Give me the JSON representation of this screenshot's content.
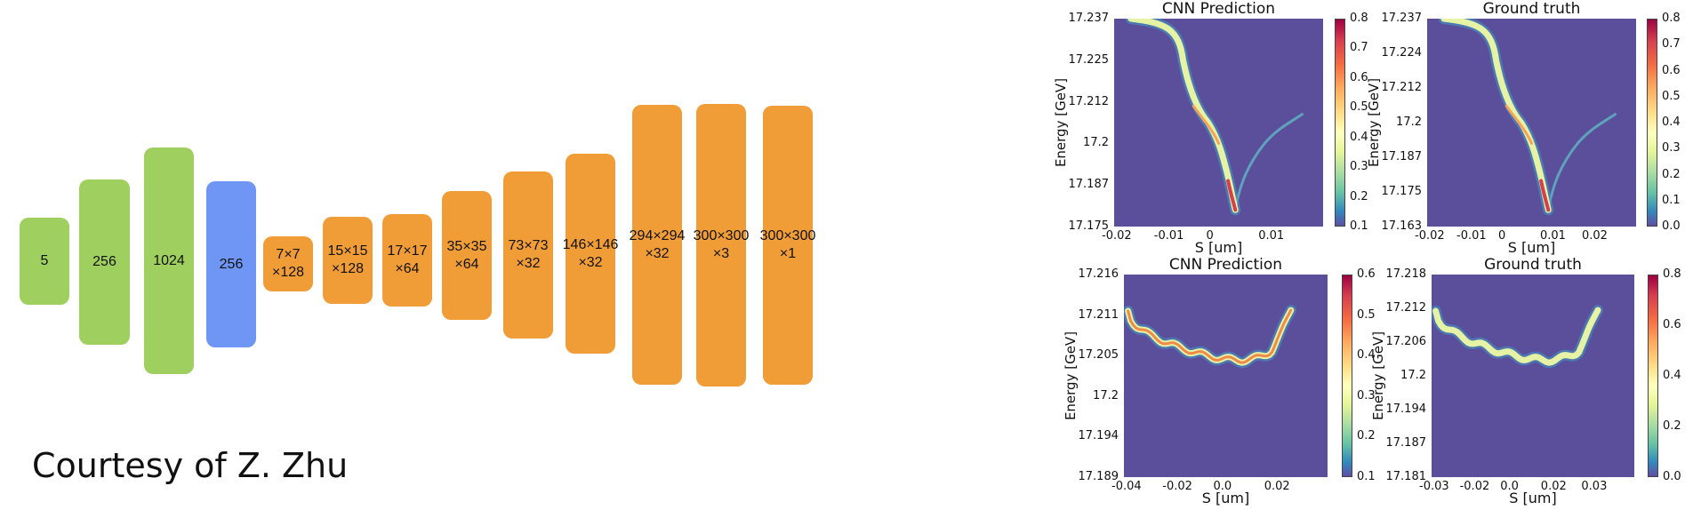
{
  "network": {
    "blocks": [
      {
        "lines": [
          "5"
        ],
        "color": "#9fd05f"
      },
      {
        "lines": [
          "256"
        ],
        "color": "#9fd05f"
      },
      {
        "lines": [
          "1024"
        ],
        "color": "#9fd05f"
      },
      {
        "lines": [
          "256"
        ],
        "color": "#6f96f4"
      },
      {
        "lines": [
          "7×7",
          "×128"
        ],
        "color": "#f09d37"
      },
      {
        "lines": [
          "15×15",
          "×128"
        ],
        "color": "#f09d37"
      },
      {
        "lines": [
          "17×17",
          "×64"
        ],
        "color": "#f09d37"
      },
      {
        "lines": [
          "35×35",
          "×64"
        ],
        "color": "#f09d37"
      },
      {
        "lines": [
          "73×73",
          "×32"
        ],
        "color": "#f09d37"
      },
      {
        "lines": [
          "146×146",
          "×32"
        ],
        "color": "#f09d37"
      },
      {
        "lines": [
          "294×294",
          "×32"
        ],
        "color": "#f09d37"
      },
      {
        "lines": [
          "300×300",
          "×3"
        ],
        "color": "#f09d37"
      },
      {
        "lines": [
          "300×300",
          "×1"
        ],
        "color": "#f09d37"
      }
    ]
  },
  "courtesy": "Courtesy of Z. Zhu",
  "panels": [
    {
      "title": "CNN Prediction",
      "ylabel": "Energy [GeV]",
      "xlabel": "S [um]",
      "yticks": [
        "17.237",
        "17.225",
        "17.212",
        "17.2",
        "17.187",
        "17.175"
      ],
      "xticks": [
        "-0.02",
        "-0.01",
        "0",
        "0.01"
      ],
      "cbticks": [
        "0.8",
        "0.7",
        "0.6",
        "0.5",
        "0.4",
        "0.3",
        "0.2",
        "0.1"
      ],
      "shape": "drop"
    },
    {
      "title": "Ground truth",
      "ylabel": "Energy [GeV]",
      "xlabel": "S [um]",
      "yticks": [
        "17.237",
        "17.224",
        "17.212",
        "17.2",
        "17.187",
        "17.175",
        "17.163"
      ],
      "xticks": [
        "-0.02",
        "-0.01",
        "0",
        "0.01",
        "0.02"
      ],
      "cbticks": [
        "0.8",
        "0.7",
        "0.6",
        "0.5",
        "0.4",
        "0.3",
        "0.2",
        "0.1",
        "0.0"
      ],
      "shape": "drop"
    },
    {
      "title": "CNN Prediction",
      "ylabel": "Energy [GeV]",
      "xlabel": "S [um]",
      "yticks": [
        "17.216",
        "17.211",
        "17.205",
        "17.2",
        "17.194",
        "17.189"
      ],
      "xticks": [
        "-0.04",
        "-0.02",
        "0.0",
        "0.02"
      ],
      "cbticks": [
        "0.6",
        "0.5",
        "0.4",
        "0.3",
        "0.2",
        "0.1"
      ],
      "shape": "bowl"
    },
    {
      "title": "Ground truth",
      "ylabel": "Energy [GeV]",
      "xlabel": "S [um]",
      "yticks": [
        "17.218",
        "17.212",
        "17.206",
        "17.2",
        "17.194",
        "17.187",
        "17.181"
      ],
      "xticks": [
        "-0.03",
        "-0.02",
        "0.0",
        "0.02",
        "0.03"
      ],
      "cbticks": [
        "0.8",
        "0.6",
        "0.4",
        "0.2",
        "0.0"
      ],
      "shape": "bowl"
    }
  ],
  "colors": {
    "plot_background": "#5b4f9c"
  }
}
